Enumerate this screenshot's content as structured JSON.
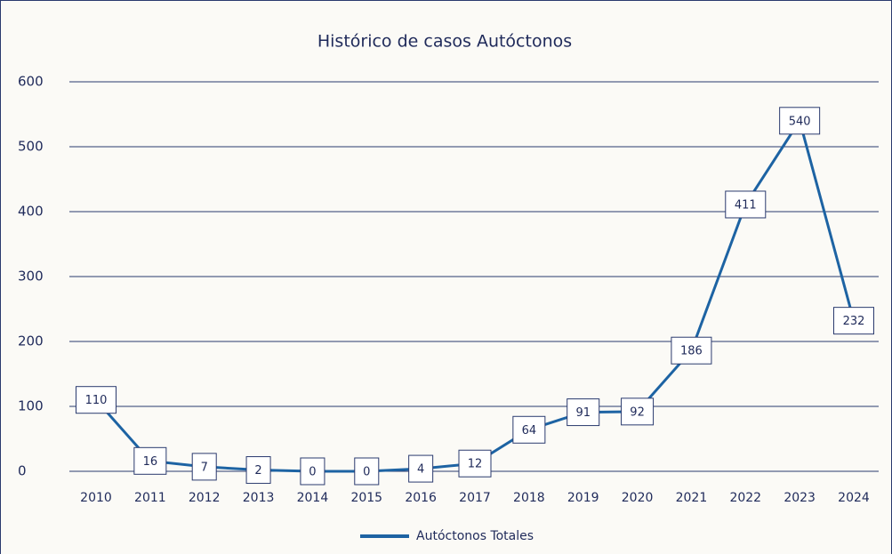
{
  "chart_data": {
    "type": "line",
    "title": "Histórico de casos Autóctonos",
    "categories": [
      "2010",
      "2011",
      "2012",
      "2013",
      "2014",
      "2015",
      "2016",
      "2017",
      "2018",
      "2019",
      "2020",
      "2021",
      "2022",
      "2023",
      "2024"
    ],
    "series": [
      {
        "name": "Autóctonos Totales",
        "color": "#1d63a3",
        "values": [
          110,
          16,
          7,
          2,
          0,
          0,
          4,
          12,
          64,
          91,
          92,
          186,
          411,
          540,
          232
        ]
      }
    ],
    "ylim": [
      0,
      600
    ],
    "yticks": [
      0,
      100,
      200,
      300,
      400,
      500,
      600
    ],
    "grid": true,
    "legend": "bottom"
  }
}
